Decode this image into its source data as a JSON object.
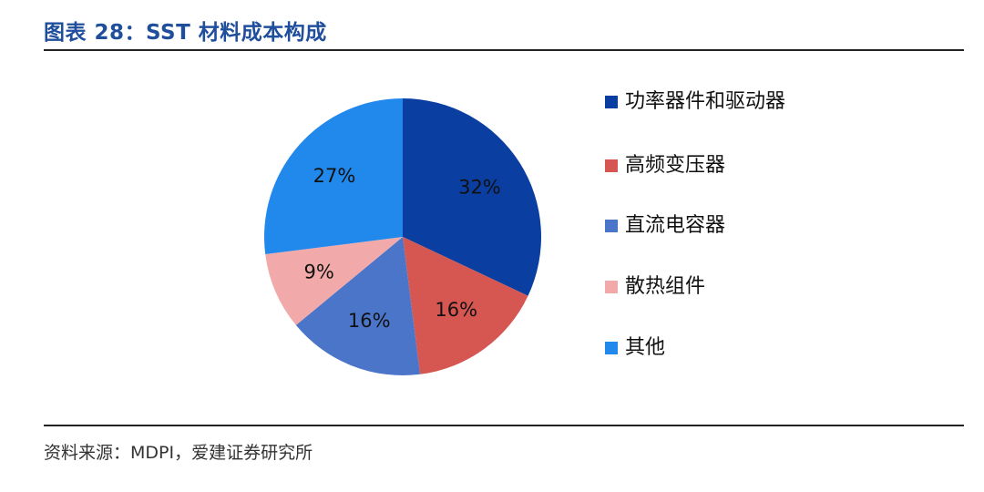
{
  "header": {
    "title": "图表 28：SST 材料成本构成"
  },
  "footer": {
    "source": "资料来源：MDPI，爱建证券研究所"
  },
  "chart_data": {
    "type": "pie",
    "title": "图表 28：SST 材料成本构成",
    "legend_position": "right",
    "categories": [
      "功率器件和驱动器",
      "高频变压器",
      "直流电容器",
      "散热组件",
      "其他"
    ],
    "values": [
      32,
      16,
      16,
      9,
      27
    ],
    "labels": [
      "32%",
      "16%",
      "16%",
      "9%",
      "27%"
    ],
    "colors": [
      "#0a3fa1",
      "#d65752",
      "#4a75c9",
      "#f1aaa9",
      "#2189ec"
    ]
  }
}
